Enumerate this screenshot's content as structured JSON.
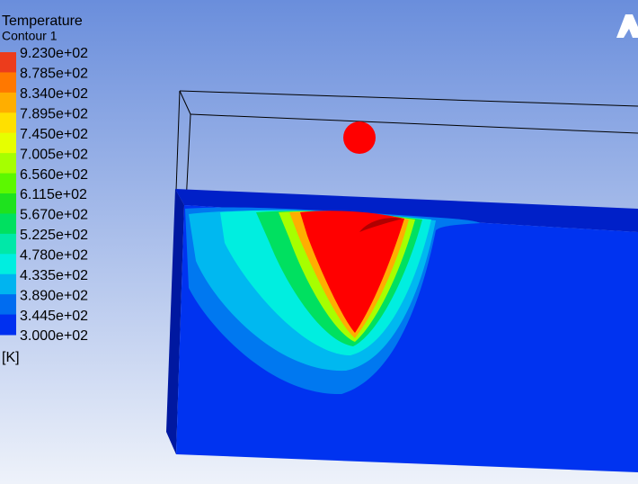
{
  "legend": {
    "title": "Temperature",
    "subtitle": "Contour 1",
    "labels": [
      "9.230e+02",
      "8.785e+02",
      "8.340e+02",
      "7.895e+02",
      "7.450e+02",
      "7.005e+02",
      "6.560e+02",
      "6.115e+02",
      "5.670e+02",
      "5.225e+02",
      "4.780e+02",
      "4.335e+02",
      "3.890e+02",
      "3.445e+02",
      "3.000e+02"
    ],
    "colors": [
      "#ec3c1c",
      "#ff7800",
      "#ffae00",
      "#ffe000",
      "#e6ff00",
      "#a6ff00",
      "#5cf800",
      "#1ee21e",
      "#00e060",
      "#00e8a8",
      "#00eee0",
      "#00b4f0",
      "#006cf0",
      "#0030f0"
    ],
    "unit": "[K]"
  }
}
